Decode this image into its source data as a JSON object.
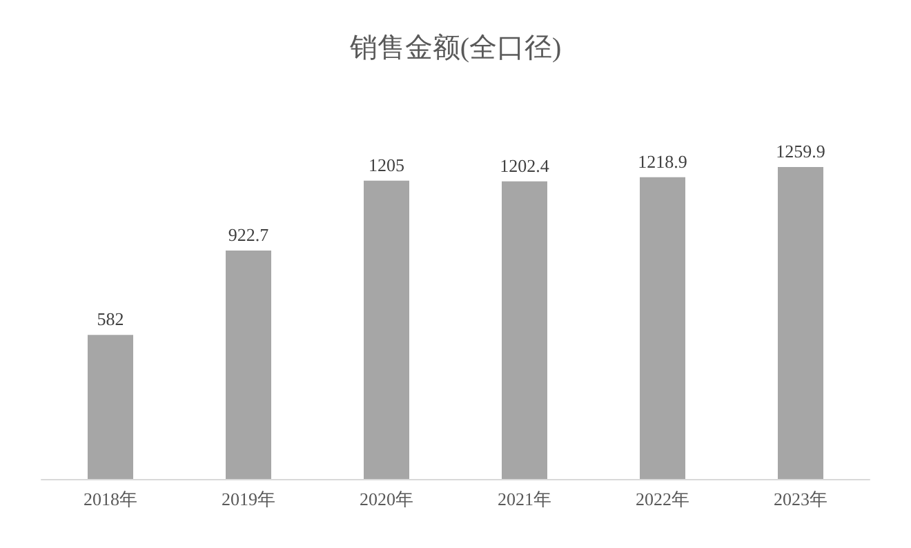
{
  "chart_data": {
    "type": "bar",
    "title": "销售金额(全口径)",
    "categories": [
      "2018年",
      "2019年",
      "2020年",
      "2021年",
      "2022年",
      "2023年"
    ],
    "values": [
      582,
      922.7,
      1205,
      1202.4,
      1218.9,
      1259.9
    ],
    "color": "#a6a6a6",
    "data_labels": true
  }
}
